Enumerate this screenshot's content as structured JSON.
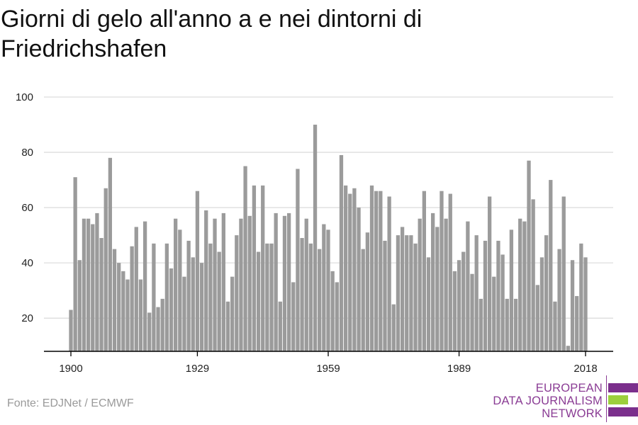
{
  "title": "Giorni di gelo all'anno a e nei dintorni di Friedrichshafen",
  "source": "Fonte: EDJNet / ECMWF",
  "logo": {
    "line1": "EUROPEAN",
    "line2": "DATA JOURNALISM",
    "line3": "NETWORK",
    "colors": {
      "purple": "#7b2f8c",
      "green": "#9ccf3c"
    }
  },
  "colors": {
    "bar": "#9b9b9b",
    "grid": "#dddddd",
    "axis": "#000000",
    "text": "#222222"
  },
  "chart_data": {
    "type": "bar",
    "title": "Giorni di gelo all'anno a e nei dintorni di Friedrichshafen",
    "xlabel": "",
    "ylabel": "",
    "ylim": [
      8,
      100
    ],
    "yticks": [
      20,
      40,
      60,
      80,
      100
    ],
    "xticks": [
      1900,
      1929,
      1959,
      1989,
      2018
    ],
    "xlim": [
      1900,
      2018
    ],
    "grid": true,
    "x": [
      1900,
      1901,
      1902,
      1903,
      1904,
      1905,
      1906,
      1907,
      1908,
      1909,
      1910,
      1911,
      1912,
      1913,
      1914,
      1915,
      1916,
      1917,
      1918,
      1919,
      1920,
      1921,
      1922,
      1923,
      1924,
      1925,
      1926,
      1927,
      1928,
      1929,
      1930,
      1931,
      1932,
      1933,
      1934,
      1935,
      1936,
      1937,
      1938,
      1939,
      1940,
      1941,
      1942,
      1943,
      1944,
      1945,
      1946,
      1947,
      1948,
      1949,
      1950,
      1951,
      1952,
      1953,
      1954,
      1955,
      1956,
      1957,
      1958,
      1959,
      1960,
      1961,
      1962,
      1963,
      1964,
      1965,
      1966,
      1967,
      1968,
      1969,
      1970,
      1971,
      1972,
      1973,
      1974,
      1975,
      1976,
      1977,
      1978,
      1979,
      1980,
      1981,
      1982,
      1983,
      1984,
      1985,
      1986,
      1987,
      1988,
      1989,
      1990,
      1991,
      1992,
      1993,
      1994,
      1995,
      1996,
      1997,
      1998,
      1999,
      2000,
      2001,
      2002,
      2003,
      2004,
      2005,
      2006,
      2007,
      2008,
      2009,
      2010,
      2011,
      2012,
      2013,
      2014,
      2015,
      2016,
      2017,
      2018
    ],
    "values": [
      23,
      71,
      41,
      56,
      56,
      54,
      58,
      49,
      67,
      78,
      45,
      40,
      37,
      34,
      46,
      53,
      34,
      55,
      22,
      47,
      24,
      27,
      47,
      38,
      56,
      52,
      35,
      48,
      42,
      66,
      40,
      59,
      47,
      56,
      44,
      58,
      26,
      35,
      50,
      56,
      75,
      57,
      68,
      44,
      68,
      47,
      47,
      58,
      26,
      57,
      58,
      33,
      74,
      49,
      56,
      47,
      90,
      45,
      54,
      52,
      37,
      33,
      79,
      68,
      65,
      67,
      60,
      45,
      51,
      68,
      66,
      66,
      48,
      64,
      25,
      50,
      53,
      50,
      50,
      47,
      56,
      66,
      42,
      58,
      53,
      66,
      56,
      65,
      37,
      41,
      44,
      55,
      36,
      50,
      27,
      48,
      64,
      35,
      48,
      43,
      27,
      52,
      27,
      56,
      55,
      77,
      63,
      32,
      42,
      50,
      70,
      26,
      45,
      64,
      10,
      41,
      28,
      47,
      42
    ]
  }
}
